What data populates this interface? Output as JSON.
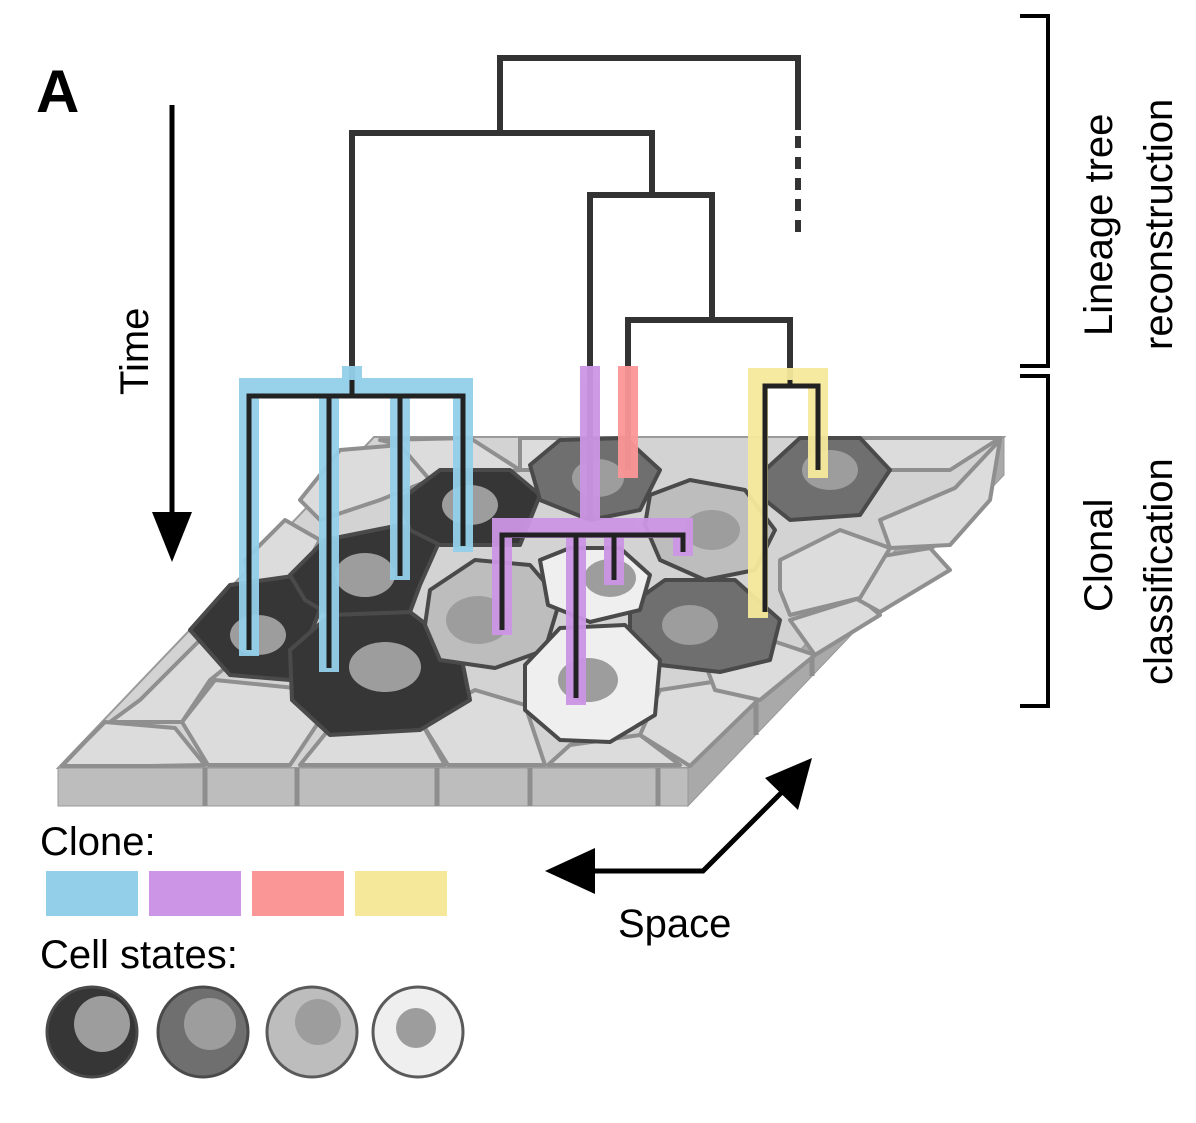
{
  "panel_label": "A",
  "axes": {
    "time_label": "Time",
    "space_label": "Space"
  },
  "brackets": {
    "lineage_line1": "Lineage tree",
    "lineage_line2": "reconstruction",
    "clonal_line1": "Clonal",
    "clonal_line2": "classification"
  },
  "legend": {
    "clone_title": "Clone:",
    "clone_colors": [
      "#93cfe9",
      "#cc95e5",
      "#fb9696",
      "#f6e89b"
    ],
    "states_title": "Cell states:",
    "state_colors": [
      "#363636",
      "#6f6f6f",
      "#bdbdbd",
      "#efefef"
    ]
  }
}
